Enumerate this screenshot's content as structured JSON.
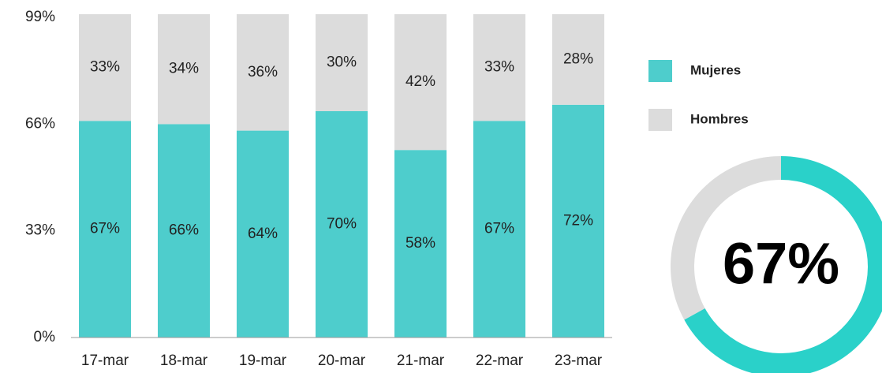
{
  "chart_data": [
    {
      "type": "stacked_bar",
      "categories": [
        "17-mar",
        "18-mar",
        "19-mar",
        "20-mar",
        "21-mar",
        "22-mar",
        "23-mar"
      ],
      "series": [
        {
          "name": "Mujeres",
          "color": "#4ecdcc",
          "values": [
            67,
            66,
            64,
            70,
            58,
            67,
            72
          ],
          "value_labels": [
            "67%",
            "66%",
            "64%",
            "70%",
            "58%",
            "67%",
            "72%"
          ]
        },
        {
          "name": "Hombres",
          "color": "#dcdcdc",
          "values": [
            33,
            34,
            36,
            30,
            42,
            33,
            28
          ],
          "value_labels": [
            "33%",
            "34%",
            "36%",
            "30%",
            "42%",
            "33%",
            "28%"
          ]
        }
      ],
      "ylim": [
        0,
        100
      ],
      "yticks": [
        {
          "value": 0,
          "label": "0%"
        },
        {
          "value": 33,
          "label": "33%"
        },
        {
          "value": 66,
          "label": "66%"
        },
        {
          "value": 99,
          "label": "99%"
        }
      ],
      "legend": "right"
    },
    {
      "type": "donut",
      "values": [
        67,
        33
      ],
      "colors": [
        "#2ad1c9",
        "#dcdcdc"
      ],
      "center_label": "67%"
    }
  ]
}
